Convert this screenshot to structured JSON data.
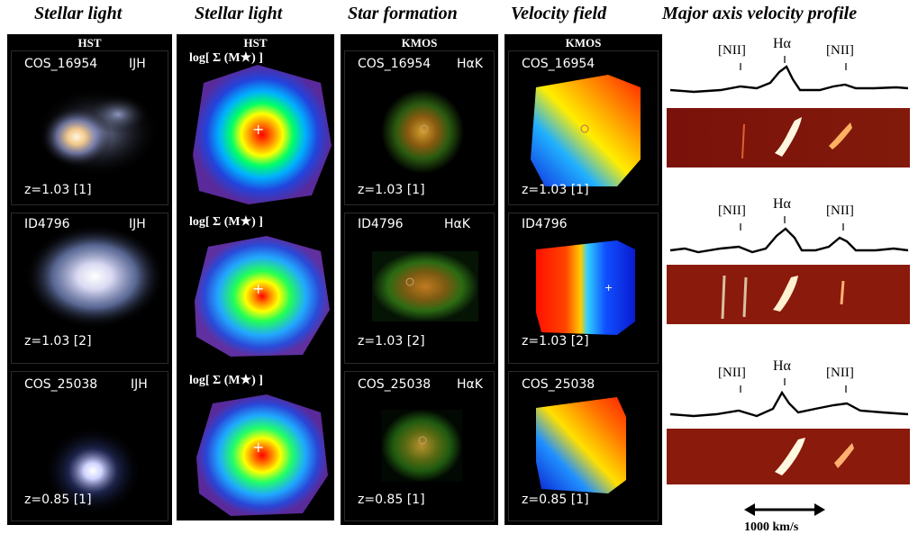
{
  "columns": [
    {
      "title": "Stellar light"
    },
    {
      "title": "Stellar light"
    },
    {
      "title": "Star formation"
    },
    {
      "title": "Velocity field"
    },
    {
      "title": "Major axis velocity profile"
    }
  ],
  "panel_headers": {
    "hst1": "HST",
    "hst2": "HST",
    "kmos1": "KMOS",
    "kmos2": "KMOS"
  },
  "rows": [
    {
      "hst_id": "COS_16954",
      "hst_band": "IJH",
      "mass_label": "log[ Σ (M★) ]",
      "kmos_id": "COS_16954",
      "kmos_band": "HαK",
      "vel_id": "COS_16954",
      "z_label": "z=1.03 [1]"
    },
    {
      "hst_id": "ID4796",
      "hst_band": "IJH",
      "mass_label": "log[ Σ (M★) ]",
      "kmos_id": "ID4796",
      "kmos_band": "HαK",
      "vel_id": "ID4796",
      "z_label": "z=1.03 [2]"
    },
    {
      "hst_id": "COS_25038",
      "hst_band": "IJH",
      "mass_label": "log[ Σ (M★) ]",
      "kmos_id": "COS_25038",
      "kmos_band": "HαK",
      "vel_id": "COS_25038",
      "z_label": "z=0.85 [1]"
    }
  ],
  "spectra": [
    {
      "line_left": "[NII]",
      "line_mid": "Hα",
      "line_right": "[NII]"
    },
    {
      "line_left": "[NII]",
      "line_mid": "Hα",
      "line_right": "[NII]"
    },
    {
      "line_left": "[NII]",
      "line_mid": "Hα",
      "line_right": "[NII]"
    }
  ],
  "scale_bar": {
    "label": "1000 km/s"
  }
}
